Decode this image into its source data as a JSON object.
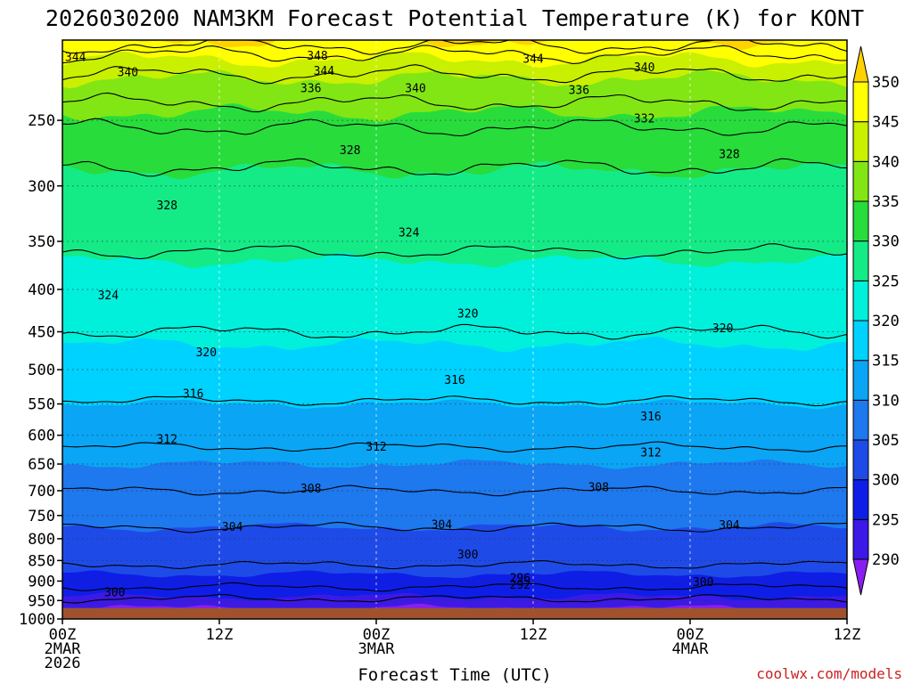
{
  "chart_data": {
    "type": "contour",
    "title": "2026030200 NAM3KM Forecast Potential Temperature (K) for KONT",
    "xlabel": "Forecast Time (UTC)",
    "ylabel": "",
    "credit": "coolwx.com/models",
    "x_range_hours": [
      0,
      60
    ],
    "y_range_hpa": [
      200,
      1000
    ],
    "surface_pressure_hpa": 970,
    "x_ticks": [
      {
        "hour": 0,
        "lines": [
          "00Z",
          "2MAR",
          "2026"
        ]
      },
      {
        "hour": 12,
        "lines": [
          "12Z"
        ]
      },
      {
        "hour": 24,
        "lines": [
          "00Z",
          "3MAR"
        ]
      },
      {
        "hour": 36,
        "lines": [
          "12Z"
        ]
      },
      {
        "hour": 48,
        "lines": [
          "00Z",
          "4MAR"
        ]
      },
      {
        "hour": 60,
        "lines": [
          "12Z"
        ]
      }
    ],
    "y_ticks": [
      250,
      300,
      350,
      400,
      450,
      500,
      550,
      600,
      650,
      700,
      750,
      800,
      850,
      900,
      950,
      1000
    ],
    "colorbar": {
      "levels": [
        290,
        295,
        300,
        305,
        310,
        315,
        320,
        325,
        330,
        335,
        340,
        345,
        350
      ],
      "colors": [
        "#8a1ef0",
        "#3c19e6",
        "#0f1ee6",
        "#1e4be8",
        "#1e78ee",
        "#0aa5f5",
        "#00d2ff",
        "#00f0dc",
        "#14eb87",
        "#28dc3c",
        "#82e614",
        "#c8f000",
        "#ffff00",
        "#ffd200"
      ],
      "labels": [
        "290",
        "295",
        "300",
        "305",
        "310",
        "315",
        "320",
        "325",
        "330",
        "335",
        "340",
        "345",
        "350"
      ]
    },
    "theta_profile": {
      "pressure_hpa": [
        200,
        225,
        250,
        275,
        300,
        350,
        400,
        450,
        500,
        550,
        600,
        650,
        700,
        750,
        800,
        850,
        900,
        950,
        970
      ],
      "theta_k": [
        350,
        339,
        334,
        331,
        329,
        326,
        323.5,
        321,
        318,
        315,
        312.5,
        310,
        308,
        306,
        304,
        302,
        299,
        294,
        290
      ]
    },
    "isotherms": [
      {
        "value": 348,
        "p_hpa": 203
      },
      {
        "value": 344,
        "p_hpa": 208
      },
      {
        "value": 340,
        "p_hpa": 220
      },
      {
        "value": 336,
        "p_hpa": 238
      },
      {
        "value": 332,
        "p_hpa": 255
      },
      {
        "value": 328,
        "p_hpa": 285
      },
      {
        "value": 324,
        "p_hpa": 360
      },
      {
        "value": 320,
        "p_hpa": 450
      },
      {
        "value": 316,
        "p_hpa": 545
      },
      {
        "value": 312,
        "p_hpa": 620
      },
      {
        "value": 308,
        "p_hpa": 700
      },
      {
        "value": 304,
        "p_hpa": 775
      },
      {
        "value": 300,
        "p_hpa": 860
      },
      {
        "value": 296,
        "p_hpa": 915
      },
      {
        "value": 292,
        "p_hpa": 945
      }
    ],
    "contour_labels": [
      {
        "text": "344",
        "hour": 1.0,
        "p": 210
      },
      {
        "text": "348",
        "hour": 19.5,
        "p": 209
      },
      {
        "text": "344",
        "hour": 20.0,
        "p": 218
      },
      {
        "text": "344",
        "hour": 36.0,
        "p": 211
      },
      {
        "text": "340",
        "hour": 5.0,
        "p": 219
      },
      {
        "text": "340",
        "hour": 27.0,
        "p": 229
      },
      {
        "text": "340",
        "hour": 44.5,
        "p": 216
      },
      {
        "text": "336",
        "hour": 19.0,
        "p": 229
      },
      {
        "text": "336",
        "hour": 39.5,
        "p": 230
      },
      {
        "text": "332",
        "hour": 44.5,
        "p": 249
      },
      {
        "text": "328",
        "hour": 22.0,
        "p": 272
      },
      {
        "text": "328",
        "hour": 51.0,
        "p": 275
      },
      {
        "text": "328",
        "hour": 8.0,
        "p": 317
      },
      {
        "text": "324",
        "hour": 26.5,
        "p": 342
      },
      {
        "text": "324",
        "hour": 3.5,
        "p": 407
      },
      {
        "text": "320",
        "hour": 31.0,
        "p": 428
      },
      {
        "text": "320",
        "hour": 50.5,
        "p": 446
      },
      {
        "text": "320",
        "hour": 11.0,
        "p": 477
      },
      {
        "text": "316",
        "hour": 30.0,
        "p": 515
      },
      {
        "text": "316",
        "hour": 10.0,
        "p": 535
      },
      {
        "text": "316",
        "hour": 45.0,
        "p": 570
      },
      {
        "text": "312",
        "hour": 8.0,
        "p": 607
      },
      {
        "text": "312",
        "hour": 24.0,
        "p": 620
      },
      {
        "text": "312",
        "hour": 45.0,
        "p": 630
      },
      {
        "text": "308",
        "hour": 19.0,
        "p": 697
      },
      {
        "text": "308",
        "hour": 41.0,
        "p": 694
      },
      {
        "text": "304",
        "hour": 13.0,
        "p": 775
      },
      {
        "text": "304",
        "hour": 29.0,
        "p": 770
      },
      {
        "text": "304",
        "hour": 51.0,
        "p": 771
      },
      {
        "text": "300",
        "hour": 31.0,
        "p": 837
      },
      {
        "text": "300",
        "hour": 49.0,
        "p": 903
      },
      {
        "text": "300",
        "hour": 4.0,
        "p": 930
      },
      {
        "text": "296",
        "hour": 35.0,
        "p": 893
      },
      {
        "text": "292",
        "hour": 35.0,
        "p": 910
      }
    ]
  }
}
